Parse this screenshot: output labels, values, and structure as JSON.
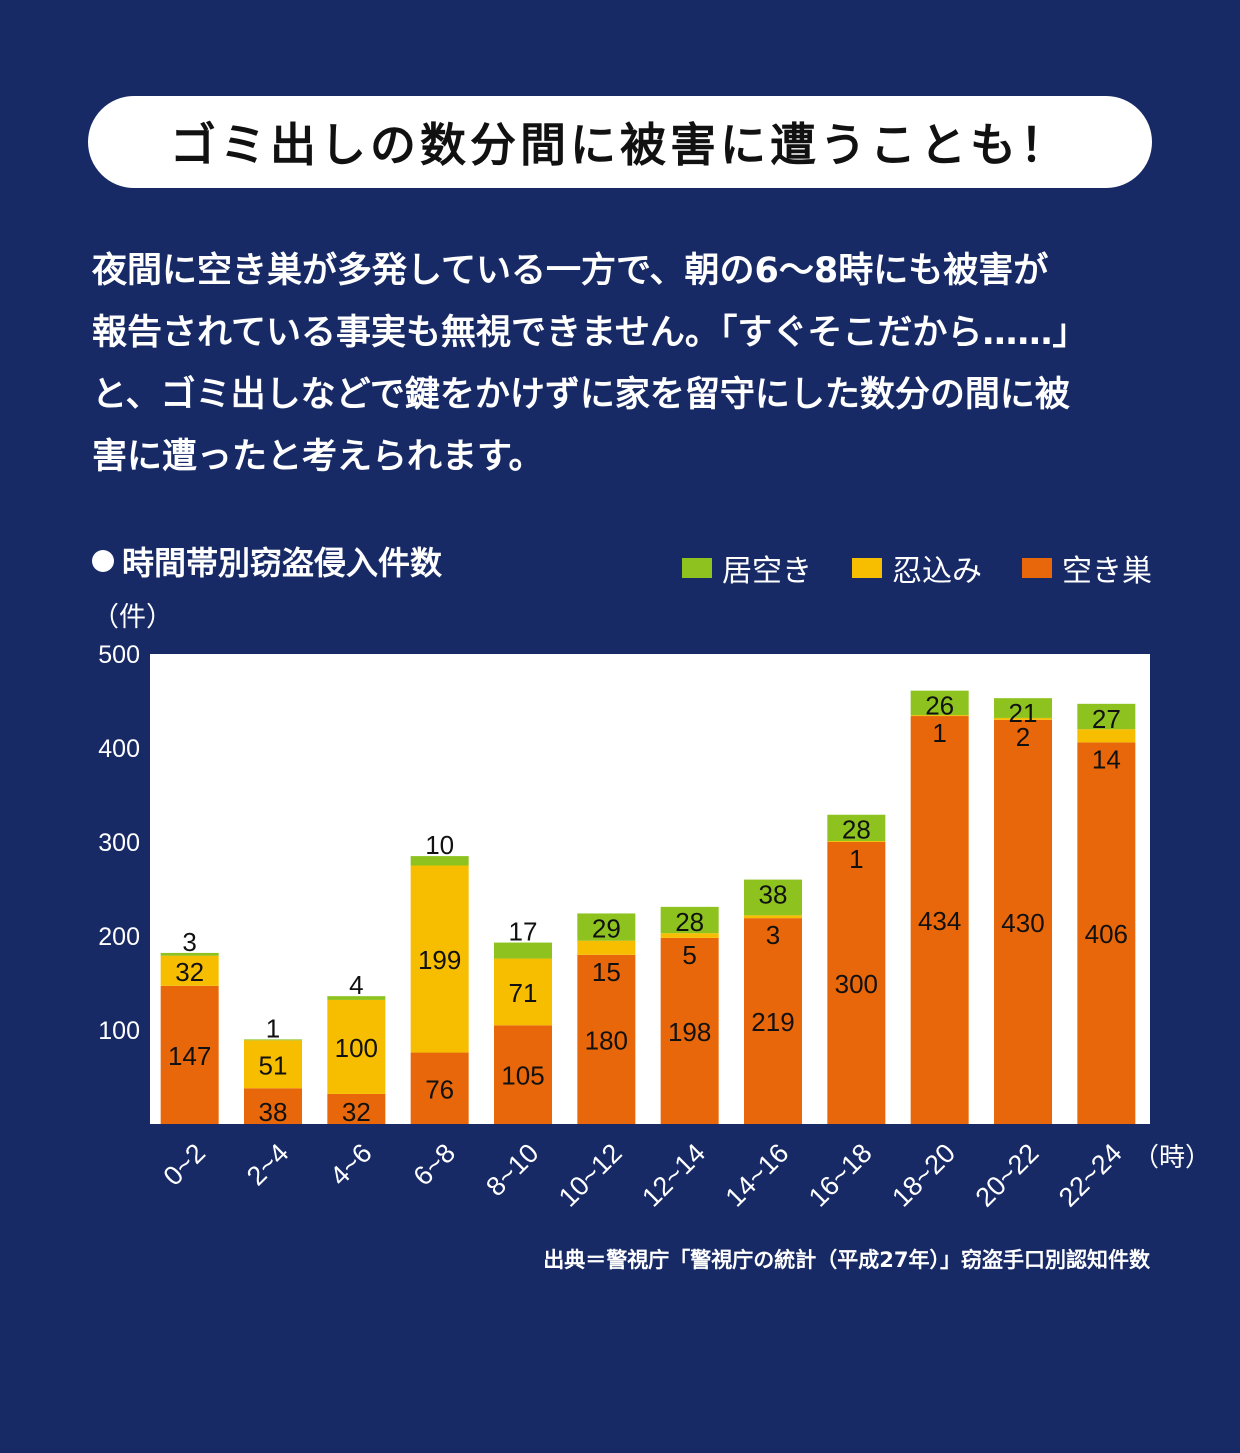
{
  "headline": "ゴミ出しの数分間に被害に遭うことも！",
  "paragraph": [
    "夜間に空き巣が多発している一方で、朝の6～8時にも被害が",
    "報告されている事実も無視できません。「すぐそこだから……」",
    "と、ゴミ出しなどで鍵をかけずに家を留守にした数分の間に被",
    "害に遭ったと考えられます。"
  ],
  "colors": {
    "background": "#172a66",
    "akisu": "#e8670a",
    "shinobikomi": "#f7be00",
    "isuaki": "#8dc21f",
    "plot_bg": "#ffffff"
  },
  "chart_data": {
    "type": "bar",
    "stacked": true,
    "title": "時間帯別窃盗侵入件数",
    "ylabel": "（件）",
    "xunit": "（時）",
    "ylim": [
      0,
      500
    ],
    "yticks": [
      100,
      200,
      300,
      400,
      500
    ],
    "categories": [
      "0~2",
      "2~4",
      "4~6",
      "6~8",
      "8~10",
      "10~12",
      "12~14",
      "14~16",
      "16~18",
      "18~20",
      "20~22",
      "22~24"
    ],
    "series": [
      {
        "name": "空き巣",
        "color": "#e8670a",
        "values": [
          147,
          38,
          32,
          76,
          105,
          180,
          198,
          219,
          300,
          434,
          430,
          406
        ]
      },
      {
        "name": "忍込み",
        "color": "#f7be00",
        "values": [
          32,
          51,
          100,
          199,
          71,
          15,
          5,
          3,
          1,
          1,
          2,
          14
        ]
      },
      {
        "name": "居空き",
        "color": "#8dc21f",
        "values": [
          3,
          1,
          4,
          10,
          17,
          29,
          28,
          38,
          28,
          26,
          21,
          27
        ]
      }
    ],
    "legend": [
      "居空き",
      "忍込み",
      "空き巣"
    ],
    "legend_position": "top-right",
    "grid": false
  },
  "source": "出典＝警視庁「警視庁の統計（平成27年）」窃盗手口別認知件数"
}
